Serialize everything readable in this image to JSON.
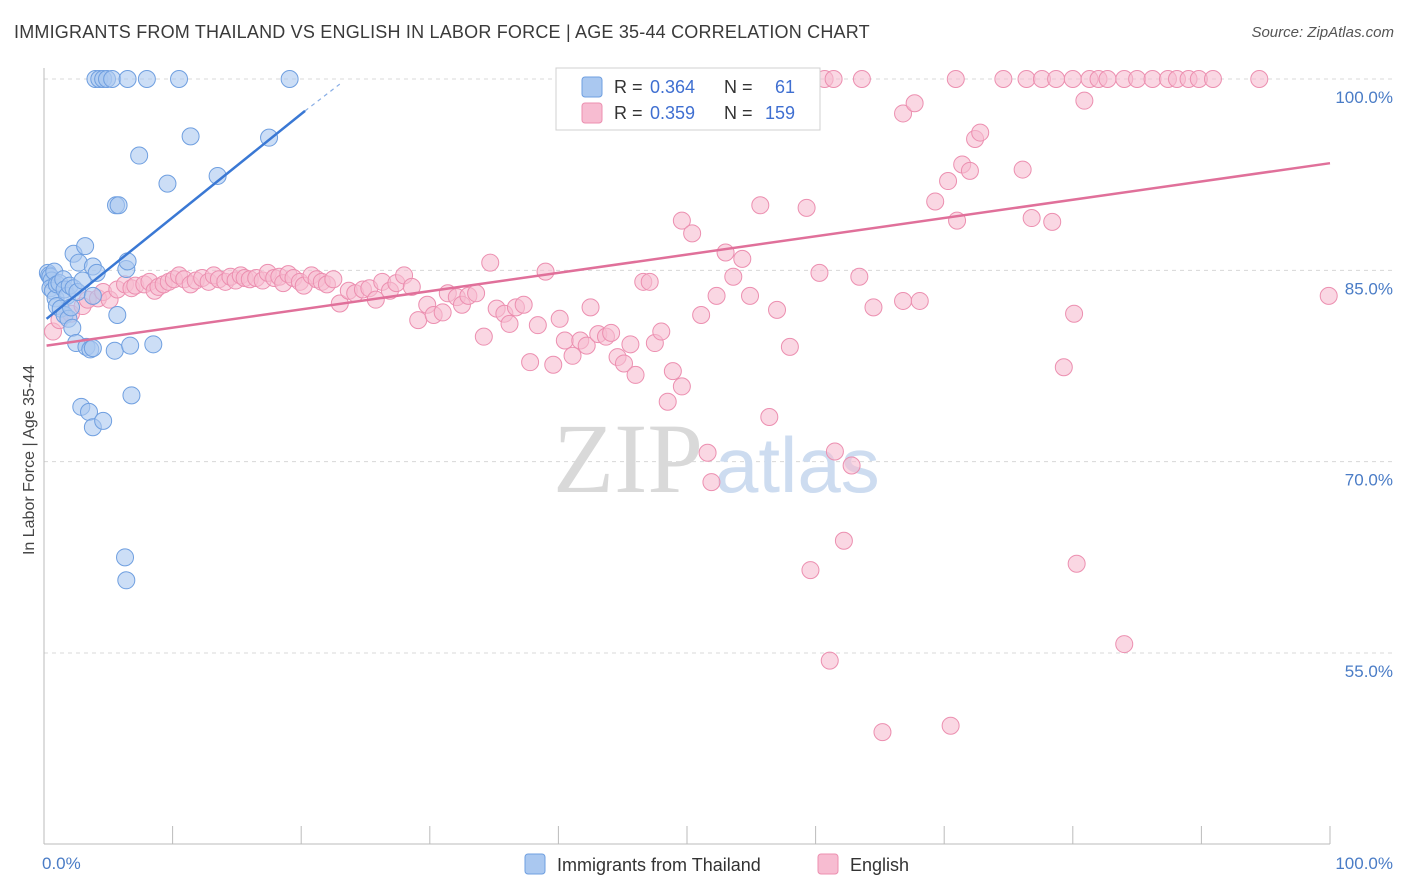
{
  "title": "IMMIGRANTS FROM THAILAND VS ENGLISH IN LABOR FORCE | AGE 35-44 CORRELATION CHART",
  "source": "Source: ZipAtlas.com",
  "watermark": {
    "zip": "ZIP",
    "atlas": "atlas"
  },
  "colors": {
    "blue_fill": "#aac8f0",
    "blue_stroke": "#6f9fe0",
    "blue_line": "#3a78d4",
    "pink_fill": "#f7bcd1",
    "pink_stroke": "#ec8fb0",
    "pink_line": "#e0709a",
    "grid": "#d8d8d8",
    "tick_text": "#4a7cc6"
  },
  "stats": {
    "r_label": "R =",
    "n_label": "N =",
    "blue": {
      "r": "0.364",
      "n": "61"
    },
    "pink": {
      "r": "0.359",
      "n": "159"
    }
  },
  "chart_data": {
    "type": "scatter",
    "title": "IMMIGRANTS FROM THAILAND VS ENGLISH IN LABOR FORCE | AGE 35-44 CORRELATION CHART",
    "xlabel": "",
    "ylabel": "In Labor Force | Age 35-44",
    "xlim": [
      0,
      100
    ],
    "ylim": [
      42,
      101.5
    ],
    "x_tick_labels": [
      {
        "value": 0,
        "label": "0.0%"
      },
      {
        "value": 100,
        "label": "100.0%"
      }
    ],
    "y_tick_labels": [
      {
        "value": 100,
        "label": "100.0%"
      },
      {
        "value": 85,
        "label": "85.0%"
      },
      {
        "value": 70,
        "label": "70.0%"
      },
      {
        "value": 55,
        "label": "55.0%"
      }
    ],
    "grid": true,
    "legend_position": "bottom-center",
    "series": [
      {
        "name": "Immigrants from Thailand",
        "color": "#aac8f0",
        "trend": {
          "x": [
            0.2,
            20.3
          ],
          "y": [
            81.2,
            97.5
          ],
          "dash_to": [
            23.0,
            99.6
          ]
        },
        "points": [
          [
            0.3,
            84.8
          ],
          [
            0.4,
            84.6
          ],
          [
            0.5,
            84.5
          ],
          [
            0.6,
            84.2
          ],
          [
            0.8,
            84.9
          ],
          [
            0.5,
            83.6
          ],
          [
            0.7,
            83.4
          ],
          [
            0.9,
            82.8
          ],
          [
            1.0,
            83.9
          ],
          [
            1.2,
            84.0
          ],
          [
            1.5,
            84.3
          ],
          [
            1.6,
            83.5
          ],
          [
            1.8,
            83.0
          ],
          [
            2.0,
            83.8
          ],
          [
            2.3,
            83.6
          ],
          [
            2.6,
            83.3
          ],
          [
            3.0,
            84.2
          ],
          [
            1.0,
            82.2
          ],
          [
            1.3,
            82.0
          ],
          [
            1.6,
            81.5
          ],
          [
            1.9,
            81.2
          ],
          [
            2.1,
            82.1
          ],
          [
            2.2,
            80.5
          ],
          [
            2.5,
            79.3
          ],
          [
            3.3,
            79.0
          ],
          [
            3.6,
            78.8
          ],
          [
            3.8,
            78.9
          ],
          [
            5.5,
            78.7
          ],
          [
            6.7,
            79.1
          ],
          [
            8.5,
            79.2
          ],
          [
            2.3,
            86.3
          ],
          [
            2.7,
            85.6
          ],
          [
            3.2,
            86.9
          ],
          [
            3.8,
            85.3
          ],
          [
            4.1,
            84.8
          ],
          [
            6.4,
            85.1
          ],
          [
            6.5,
            85.7
          ],
          [
            5.7,
            81.5
          ],
          [
            3.8,
            83.0
          ],
          [
            2.9,
            74.3
          ],
          [
            3.5,
            73.9
          ],
          [
            3.8,
            72.7
          ],
          [
            4.6,
            73.2
          ],
          [
            6.8,
            75.2
          ],
          [
            6.3,
            62.5
          ],
          [
            6.4,
            60.7
          ],
          [
            5.6,
            90.1
          ],
          [
            5.8,
            90.1
          ],
          [
            7.4,
            94.0
          ],
          [
            9.6,
            91.8
          ],
          [
            10.5,
            100.0
          ],
          [
            11.4,
            95.5
          ],
          [
            13.5,
            92.4
          ],
          [
            17.5,
            95.4
          ],
          [
            19.1,
            100.0
          ],
          [
            4.0,
            100.0
          ],
          [
            4.3,
            100.0
          ],
          [
            4.6,
            100.0
          ],
          [
            4.9,
            100.0
          ],
          [
            5.3,
            100.0
          ],
          [
            6.5,
            100.0
          ],
          [
            8.0,
            100.0
          ]
        ]
      },
      {
        "name": "English",
        "color": "#f7bcd1",
        "trend": {
          "x": [
            0.2,
            100
          ],
          "y": [
            79.1,
            93.4
          ]
        },
        "points": [
          [
            0.7,
            80.2
          ],
          [
            1.2,
            81.1
          ],
          [
            2.1,
            81.6
          ],
          [
            3.0,
            82.2
          ],
          [
            3.4,
            82.7
          ],
          [
            4.2,
            82.8
          ],
          [
            4.6,
            83.3
          ],
          [
            5.1,
            82.7
          ],
          [
            5.7,
            83.5
          ],
          [
            6.3,
            83.9
          ],
          [
            6.8,
            83.6
          ],
          [
            7.1,
            83.8
          ],
          [
            7.8,
            83.9
          ],
          [
            8.2,
            84.1
          ],
          [
            8.6,
            83.4
          ],
          [
            8.9,
            83.7
          ],
          [
            9.3,
            83.9
          ],
          [
            9.7,
            84.1
          ],
          [
            10.1,
            84.3
          ],
          [
            10.5,
            84.6
          ],
          [
            10.9,
            84.3
          ],
          [
            11.4,
            83.9
          ],
          [
            11.8,
            84.2
          ],
          [
            12.3,
            84.4
          ],
          [
            12.8,
            84.1
          ],
          [
            13.2,
            84.6
          ],
          [
            13.6,
            84.3
          ],
          [
            14.1,
            84.1
          ],
          [
            14.5,
            84.5
          ],
          [
            14.9,
            84.2
          ],
          [
            15.3,
            84.6
          ],
          [
            15.6,
            84.4
          ],
          [
            16.0,
            84.3
          ],
          [
            16.5,
            84.4
          ],
          [
            17.0,
            84.2
          ],
          [
            17.4,
            84.8
          ],
          [
            17.9,
            84.4
          ],
          [
            18.3,
            84.5
          ],
          [
            18.6,
            84.0
          ],
          [
            19.0,
            84.7
          ],
          [
            19.4,
            84.4
          ],
          [
            19.9,
            84.1
          ],
          [
            20.2,
            83.8
          ],
          [
            20.8,
            84.6
          ],
          [
            21.2,
            84.3
          ],
          [
            21.6,
            84.1
          ],
          [
            22.0,
            83.9
          ],
          [
            22.5,
            84.3
          ],
          [
            23.0,
            82.4
          ],
          [
            23.7,
            83.4
          ],
          [
            24.2,
            83.2
          ],
          [
            24.8,
            83.5
          ],
          [
            25.3,
            83.6
          ],
          [
            25.8,
            82.7
          ],
          [
            26.3,
            84.1
          ],
          [
            26.9,
            83.4
          ],
          [
            27.4,
            84.0
          ],
          [
            28.0,
            84.6
          ],
          [
            28.6,
            83.7
          ],
          [
            29.1,
            81.1
          ],
          [
            29.8,
            82.3
          ],
          [
            30.3,
            81.5
          ],
          [
            31.0,
            81.7
          ],
          [
            31.4,
            83.2
          ],
          [
            32.1,
            82.9
          ],
          [
            32.5,
            82.3
          ],
          [
            33.0,
            83.0
          ],
          [
            33.6,
            83.2
          ],
          [
            34.2,
            79.8
          ],
          [
            34.7,
            85.6
          ],
          [
            35.2,
            82.0
          ],
          [
            35.8,
            81.6
          ],
          [
            36.2,
            80.8
          ],
          [
            36.7,
            82.1
          ],
          [
            37.3,
            82.3
          ],
          [
            37.8,
            77.8
          ],
          [
            38.4,
            80.7
          ],
          [
            39.0,
            84.9
          ],
          [
            39.6,
            77.6
          ],
          [
            40.1,
            81.2
          ],
          [
            40.5,
            79.5
          ],
          [
            41.1,
            78.3
          ],
          [
            41.7,
            79.5
          ],
          [
            42.2,
            79.1
          ],
          [
            42.5,
            82.1
          ],
          [
            43.1,
            80.0
          ],
          [
            43.7,
            79.8
          ],
          [
            44.1,
            80.1
          ],
          [
            44.6,
            78.2
          ],
          [
            45.1,
            77.7
          ],
          [
            45.6,
            79.2
          ],
          [
            46.0,
            76.8
          ],
          [
            46.6,
            84.1
          ],
          [
            47.1,
            84.1
          ],
          [
            47.5,
            79.3
          ],
          [
            48.0,
            80.2
          ],
          [
            48.5,
            74.7
          ],
          [
            48.9,
            77.1
          ],
          [
            49.6,
            75.9
          ],
          [
            49.6,
            88.9
          ],
          [
            50.4,
            87.9
          ],
          [
            51.1,
            81.5
          ],
          [
            51.6,
            70.7
          ],
          [
            51.9,
            68.4
          ],
          [
            52.3,
            83.0
          ],
          [
            53.0,
            86.4
          ],
          [
            53.6,
            84.5
          ],
          [
            54.3,
            85.9
          ],
          [
            54.9,
            83.0
          ],
          [
            55.7,
            90.1
          ],
          [
            56.4,
            73.5
          ],
          [
            57.0,
            81.9
          ],
          [
            58.0,
            79.0
          ],
          [
            59.3,
            89.9
          ],
          [
            59.6,
            61.5
          ],
          [
            60.3,
            84.8
          ],
          [
            61.1,
            54.4
          ],
          [
            61.5,
            70.8
          ],
          [
            62.2,
            63.8
          ],
          [
            62.8,
            69.7
          ],
          [
            63.4,
            84.5
          ],
          [
            64.5,
            82.1
          ],
          [
            65.2,
            48.8
          ],
          [
            66.8,
            82.6
          ],
          [
            68.1,
            82.6
          ],
          [
            69.3,
            90.4
          ],
          [
            70.3,
            92.0
          ],
          [
            70.5,
            49.3
          ],
          [
            71.0,
            88.9
          ],
          [
            71.4,
            93.3
          ],
          [
            72.0,
            92.8
          ],
          [
            72.4,
            95.3
          ],
          [
            72.8,
            95.8
          ],
          [
            76.1,
            92.9
          ],
          [
            76.8,
            89.1
          ],
          [
            78.4,
            88.8
          ],
          [
            79.3,
            77.4
          ],
          [
            80.1,
            81.6
          ],
          [
            80.3,
            62.0
          ],
          [
            84.0,
            55.7
          ],
          [
            80.9,
            98.3
          ],
          [
            60.7,
            100.0
          ],
          [
            66.8,
            97.3
          ],
          [
            67.7,
            98.1
          ],
          [
            58.8,
            100.0
          ],
          [
            61.4,
            100.0
          ],
          [
            63.6,
            100.0
          ],
          [
            70.9,
            100.0
          ],
          [
            74.6,
            100.0
          ],
          [
            76.4,
            100.0
          ],
          [
            77.6,
            100.0
          ],
          [
            78.7,
            100.0
          ],
          [
            80.0,
            100.0
          ],
          [
            81.3,
            100.0
          ],
          [
            82.0,
            100.0
          ],
          [
            82.7,
            100.0
          ],
          [
            84.0,
            100.0
          ],
          [
            85.0,
            100.0
          ],
          [
            86.2,
            100.0
          ],
          [
            87.4,
            100.0
          ],
          [
            88.1,
            100.0
          ],
          [
            89.0,
            100.0
          ],
          [
            89.8,
            100.0
          ],
          [
            90.9,
            100.0
          ],
          [
            94.5,
            100.0
          ],
          [
            99.9,
            83.0
          ]
        ]
      }
    ]
  },
  "legend": {
    "items": [
      {
        "label": "Immigrants from Thailand"
      },
      {
        "label": "English"
      }
    ]
  }
}
